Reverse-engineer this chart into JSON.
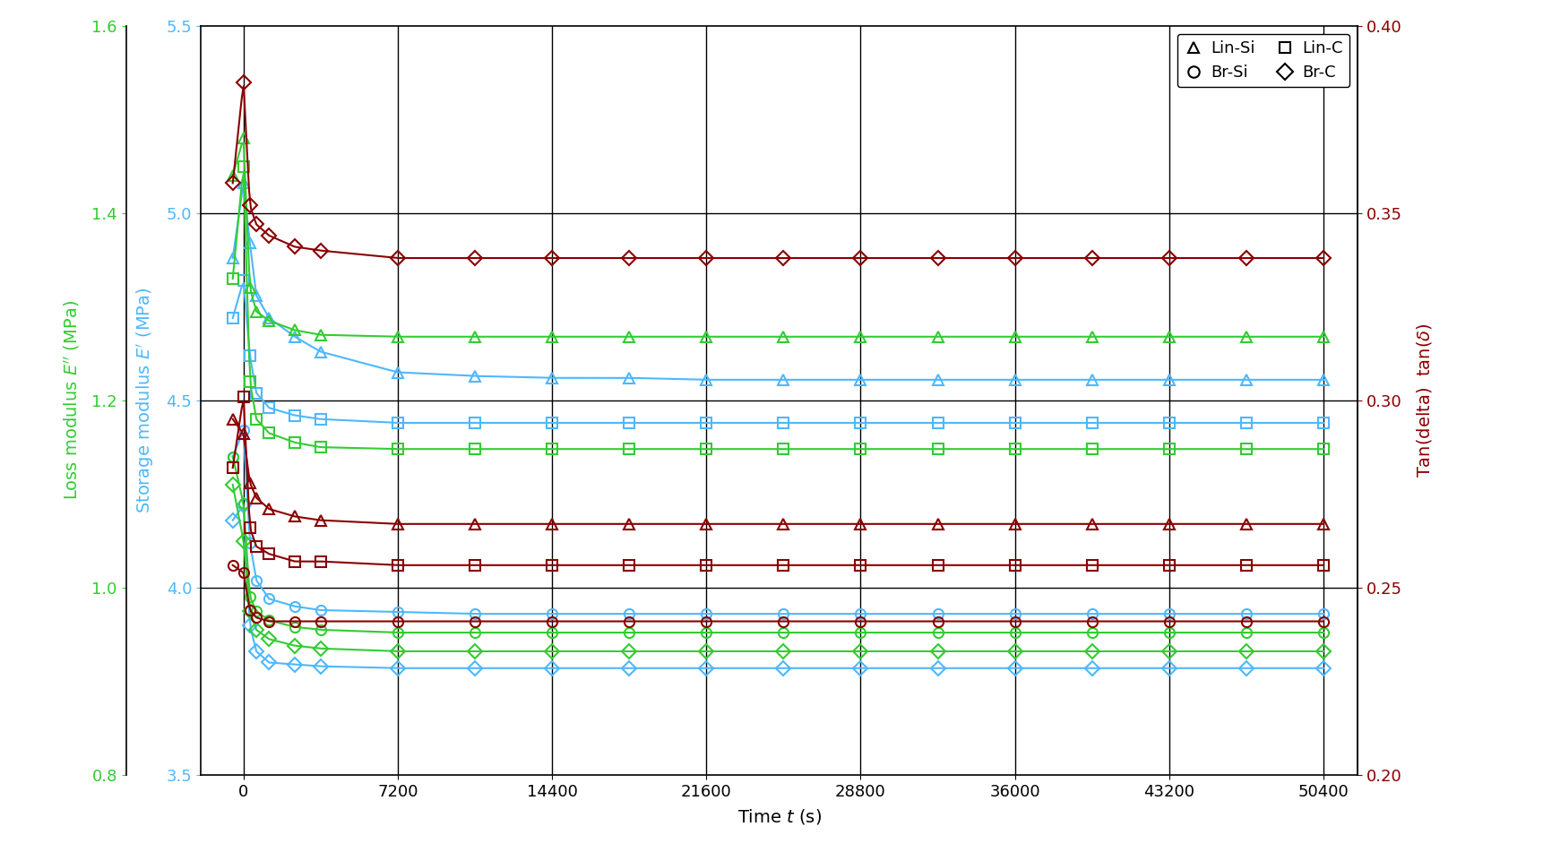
{
  "xlim": [
    -2000,
    52000
  ],
  "xticks": [
    0,
    7200,
    14400,
    21600,
    28800,
    36000,
    43200,
    50400
  ],
  "ep_ylim": [
    3.5,
    5.5
  ],
  "ep_yticks": [
    3.5,
    4.0,
    4.5,
    5.0,
    5.5
  ],
  "epp_ylim": [
    0.8,
    1.6
  ],
  "epp_yticks": [
    0.8,
    1.0,
    1.2,
    1.4,
    1.6
  ],
  "tan_ylim": [
    0.2,
    0.4
  ],
  "tan_yticks": [
    0.2,
    0.25,
    0.3,
    0.35,
    0.4
  ],
  "color_blue": "#4db8ff",
  "color_green": "#33cc33",
  "color_dark_red": "#8b0000",
  "background": "#FFFFFF",
  "hlines_ep": [
    4.0,
    4.5,
    5.0
  ],
  "vlines_x": [
    0,
    7200,
    14400,
    21600,
    28800,
    36000,
    43200,
    50400
  ],
  "series": {
    "Ep_LinSi": {
      "color": "blue_ax",
      "marker": "^",
      "x": [
        -500,
        0,
        300,
        600,
        1200,
        2400,
        3600,
        7200,
        10800,
        14400,
        18000,
        21600,
        25200,
        28800,
        32400,
        36000,
        39600,
        43200,
        46800,
        50400
      ],
      "y": [
        4.88,
        5.08,
        4.92,
        4.78,
        4.72,
        4.67,
        4.63,
        4.575,
        4.565,
        4.56,
        4.56,
        4.555,
        4.555,
        4.555,
        4.555,
        4.555,
        4.555,
        4.555,
        4.555,
        4.555
      ]
    },
    "Ep_LinC": {
      "color": "blue_ax",
      "marker": "s",
      "x": [
        -500,
        0,
        300,
        600,
        1200,
        2400,
        3600,
        7200,
        10800,
        14400,
        18000,
        21600,
        25200,
        28800,
        32400,
        36000,
        39600,
        43200,
        46800,
        50400
      ],
      "y": [
        4.72,
        4.82,
        4.62,
        4.52,
        4.48,
        4.46,
        4.45,
        4.44,
        4.44,
        4.44,
        4.44,
        4.44,
        4.44,
        4.44,
        4.44,
        4.44,
        4.44,
        4.44,
        4.44,
        4.44
      ]
    },
    "Ep_BrSi": {
      "color": "blue_ax",
      "marker": "o",
      "x": [
        -500,
        0,
        300,
        600,
        1200,
        2400,
        3600,
        7200,
        10800,
        14400,
        18000,
        21600,
        25200,
        28800,
        32400,
        36000,
        39600,
        43200,
        46800,
        50400
      ],
      "y": [
        4.35,
        4.42,
        4.12,
        4.02,
        3.97,
        3.95,
        3.94,
        3.935,
        3.93,
        3.93,
        3.93,
        3.93,
        3.93,
        3.93,
        3.93,
        3.93,
        3.93,
        3.93,
        3.93,
        3.93
      ]
    },
    "Ep_BrC": {
      "color": "blue_ax",
      "marker": "D",
      "x": [
        -500,
        0,
        300,
        600,
        1200,
        2400,
        3600,
        7200,
        10800,
        14400,
        18000,
        21600,
        25200,
        28800,
        32400,
        36000,
        39600,
        43200,
        46800,
        50400
      ],
      "y": [
        4.18,
        4.22,
        3.9,
        3.83,
        3.8,
        3.795,
        3.79,
        3.785,
        3.785,
        3.785,
        3.785,
        3.785,
        3.785,
        3.785,
        3.785,
        3.785,
        3.785,
        3.785,
        3.785,
        3.785
      ]
    },
    "Epp_LinSi": {
      "color": "green_ax",
      "marker": "^",
      "x": [
        -500,
        0,
        300,
        600,
        1200,
        2400,
        3600,
        7200,
        10800,
        14400,
        18000,
        21600,
        25200,
        28800,
        32400,
        36000,
        39600,
        43200,
        46800,
        50400
      ],
      "y": [
        1.44,
        1.48,
        1.32,
        1.295,
        1.285,
        1.275,
        1.27,
        1.268,
        1.268,
        1.268,
        1.268,
        1.268,
        1.268,
        1.268,
        1.268,
        1.268,
        1.268,
        1.268,
        1.268,
        1.268
      ]
    },
    "Epp_LinC": {
      "color": "green_ax",
      "marker": "s",
      "x": [
        -500,
        0,
        300,
        600,
        1200,
        2400,
        3600,
        7200,
        10800,
        14400,
        18000,
        21600,
        25200,
        28800,
        32400,
        36000,
        39600,
        43200,
        46800,
        50400
      ],
      "y": [
        1.33,
        1.45,
        1.22,
        1.18,
        1.165,
        1.155,
        1.15,
        1.148,
        1.148,
        1.148,
        1.148,
        1.148,
        1.148,
        1.148,
        1.148,
        1.148,
        1.148,
        1.148,
        1.148,
        1.148
      ]
    },
    "Epp_BrSi": {
      "color": "green_ax",
      "marker": "o",
      "x": [
        -500,
        0,
        300,
        600,
        1200,
        2400,
        3600,
        7200,
        10800,
        14400,
        18000,
        21600,
        25200,
        28800,
        32400,
        36000,
        39600,
        43200,
        46800,
        50400
      ],
      "y": [
        1.14,
        1.09,
        0.99,
        0.975,
        0.965,
        0.958,
        0.955,
        0.952,
        0.952,
        0.952,
        0.952,
        0.952,
        0.952,
        0.952,
        0.952,
        0.952,
        0.952,
        0.952,
        0.952,
        0.952
      ]
    },
    "Epp_BrC": {
      "color": "green_ax",
      "marker": "D",
      "x": [
        -500,
        0,
        300,
        600,
        1200,
        2400,
        3600,
        7200,
        10800,
        14400,
        18000,
        21600,
        25200,
        28800,
        32400,
        36000,
        39600,
        43200,
        46800,
        50400
      ],
      "y": [
        1.11,
        1.05,
        0.975,
        0.955,
        0.945,
        0.938,
        0.935,
        0.932,
        0.932,
        0.932,
        0.932,
        0.932,
        0.932,
        0.932,
        0.932,
        0.932,
        0.932,
        0.932,
        0.932,
        0.932
      ]
    },
    "Tan_BrC": {
      "color": "red_ax",
      "marker": "D",
      "x": [
        -500,
        0,
        300,
        600,
        1200,
        2400,
        3600,
        7200,
        10800,
        14400,
        18000,
        21600,
        25200,
        28800,
        32400,
        36000,
        39600,
        43200,
        46800,
        50400
      ],
      "y": [
        0.358,
        0.385,
        0.352,
        0.347,
        0.344,
        0.341,
        0.34,
        0.338,
        0.338,
        0.338,
        0.338,
        0.338,
        0.338,
        0.338,
        0.338,
        0.338,
        0.338,
        0.338,
        0.338,
        0.338
      ]
    },
    "Tan_LinSi": {
      "color": "red_ax",
      "marker": "^",
      "x": [
        -500,
        0,
        300,
        600,
        1200,
        2400,
        3600,
        7200,
        10800,
        14400,
        18000,
        21600,
        25200,
        28800,
        32400,
        36000,
        39600,
        43200,
        46800,
        50400
      ],
      "y": [
        0.295,
        0.291,
        0.278,
        0.274,
        0.271,
        0.269,
        0.268,
        0.267,
        0.267,
        0.267,
        0.267,
        0.267,
        0.267,
        0.267,
        0.267,
        0.267,
        0.267,
        0.267,
        0.267,
        0.267
      ]
    },
    "Tan_LinC": {
      "color": "red_ax",
      "marker": "s",
      "x": [
        -500,
        0,
        300,
        600,
        1200,
        2400,
        3600,
        7200,
        10800,
        14400,
        18000,
        21600,
        25200,
        28800,
        32400,
        36000,
        39600,
        43200,
        46800,
        50400
      ],
      "y": [
        0.282,
        0.301,
        0.266,
        0.261,
        0.259,
        0.257,
        0.257,
        0.256,
        0.256,
        0.256,
        0.256,
        0.256,
        0.256,
        0.256,
        0.256,
        0.256,
        0.256,
        0.256,
        0.256,
        0.256
      ]
    },
    "Tan_BrSi": {
      "color": "red_ax",
      "marker": "o",
      "x": [
        -500,
        0,
        300,
        600,
        1200,
        2400,
        3600,
        7200,
        10800,
        14400,
        18000,
        21600,
        25200,
        28800,
        32400,
        36000,
        39600,
        43200,
        46800,
        50400
      ],
      "y": [
        0.256,
        0.254,
        0.244,
        0.242,
        0.241,
        0.241,
        0.241,
        0.241,
        0.241,
        0.241,
        0.241,
        0.241,
        0.241,
        0.241,
        0.241,
        0.241,
        0.241,
        0.241,
        0.241,
        0.241
      ]
    }
  }
}
